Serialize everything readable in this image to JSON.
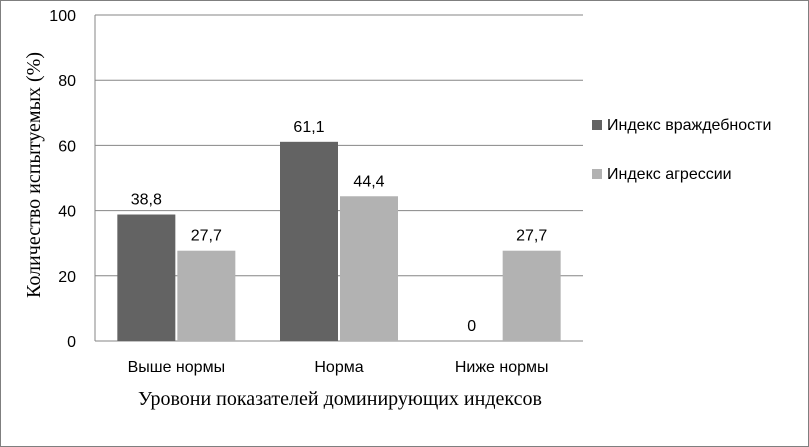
{
  "chart_data": {
    "type": "bar",
    "categories": [
      "Выше нормы",
      "Норма",
      "Ниже нормы"
    ],
    "series": [
      {
        "name": "Индекс враждебности",
        "values": [
          38.8,
          61.1,
          0
        ],
        "labels": [
          "38,8",
          "61,1",
          "0"
        ],
        "color": "#636363"
      },
      {
        "name": "Индекс агрессии",
        "values": [
          27.7,
          44.4,
          27.7
        ],
        "labels": [
          "27,7",
          "44,4",
          "27,7"
        ],
        "color": "#b2b2b2"
      }
    ],
    "xlabel": "Уровони показателей доминирующих индексов",
    "ylabel": "Количество испытуемых (%)",
    "ylim": [
      0,
      100
    ],
    "yticks": [
      "0",
      "20",
      "40",
      "60",
      "80",
      "100"
    ],
    "grid": true,
    "legend_position": "right"
  }
}
